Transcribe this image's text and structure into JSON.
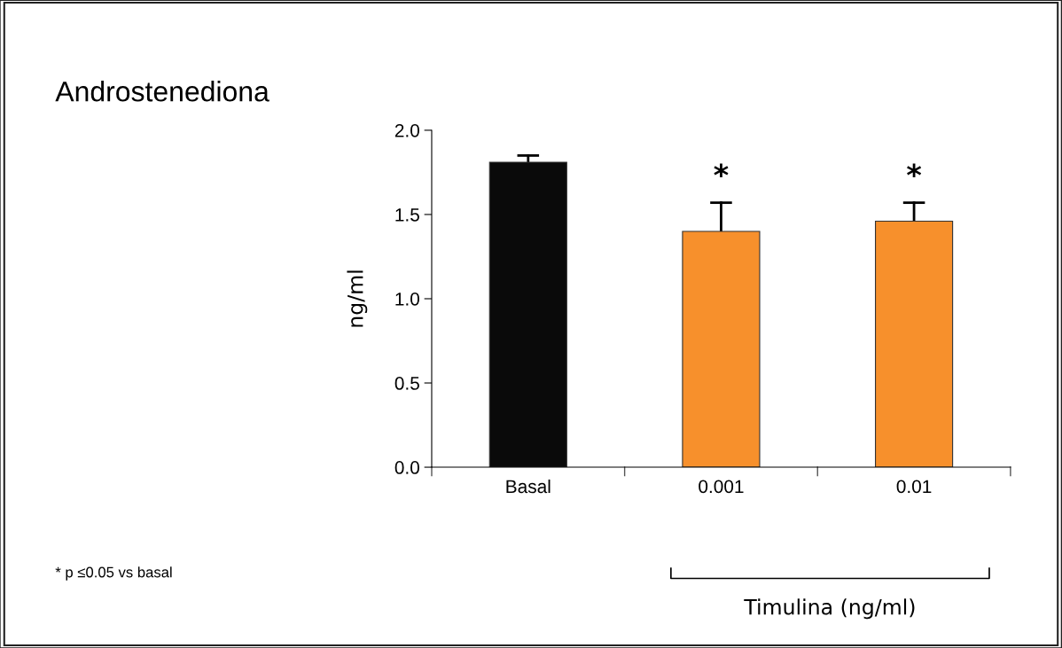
{
  "chart_data": {
    "type": "bar",
    "title": "Androstenediona",
    "ylabel": "ng/ml",
    "categories": [
      "Basal",
      "0.001",
      "0.01"
    ],
    "values": [
      1.81,
      1.4,
      1.46
    ],
    "colors": [
      "#0a0a0a",
      "#f7902c",
      "#f7902c"
    ],
    "errors": [
      [
        1.81,
        1.85
      ],
      [
        1.4,
        1.57
      ],
      [
        1.46,
        1.57
      ]
    ],
    "ylim": [
      0,
      2
    ],
    "yticks": [
      {
        "value": 0,
        "label": "0.0"
      },
      {
        "value": 0.5,
        "label": "0.5"
      },
      {
        "value": 1,
        "label": "1.0"
      },
      {
        "value": 1.5,
        "label": "1.5"
      },
      {
        "value": 2,
        "label": "2.0"
      }
    ],
    "annotations": [
      "*",
      "*",
      "Timulina (ng/ml)",
      "* p ≤0.05 vs basal"
    ],
    "grid": false,
    "legend": false
  }
}
